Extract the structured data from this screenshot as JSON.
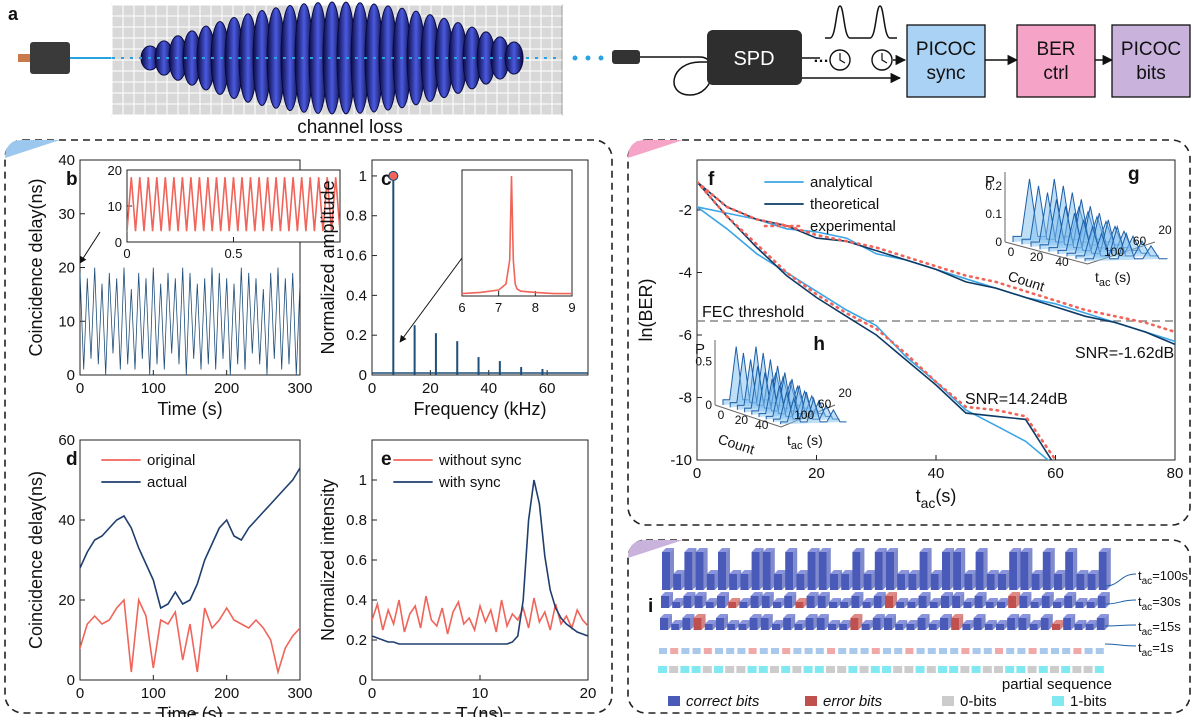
{
  "diagram": {
    "label": "a",
    "channel_loss": "channel loss",
    "spd": "SPD",
    "boxes": [
      {
        "lines": [
          "PICOC",
          "sync"
        ],
        "color": "#a9d2f5"
      },
      {
        "lines": [
          "BER",
          "ctrl"
        ],
        "color": "#f5a3c7"
      },
      {
        "lines": [
          "PICOC",
          "bits"
        ],
        "color": "#c9b3dd"
      }
    ]
  },
  "chart_data": [
    {
      "type": "line",
      "panel": "b",
      "xlabel": "Time (s)",
      "ylabel": "Coincidence delay(ns)",
      "xlim": [
        0,
        300
      ],
      "ylim": [
        0,
        40
      ],
      "xticks": [
        0,
        100,
        200,
        300
      ],
      "yticks": [
        0,
        10,
        20,
        30,
        40
      ],
      "x": [
        0,
        5,
        10,
        15,
        20,
        25,
        30,
        35,
        40,
        45,
        50,
        55,
        60,
        65,
        70,
        75,
        80,
        85,
        90,
        95,
        100,
        105,
        110,
        115,
        120,
        125,
        130,
        135,
        140,
        145,
        150,
        155,
        160,
        165,
        170,
        175,
        180,
        185,
        190,
        195,
        200,
        205,
        210,
        215,
        220,
        225,
        230,
        235,
        240,
        245,
        250,
        255,
        260,
        265,
        270,
        275,
        280,
        285,
        290,
        295,
        300
      ],
      "series": [
        {
          "color": "#1f4e79",
          "values": [
            19,
            1,
            18,
            3,
            20,
            2,
            17,
            0,
            19,
            4,
            18,
            1,
            20,
            2,
            16,
            1,
            19,
            3,
            18,
            0,
            20,
            2,
            17,
            1,
            19,
            4,
            18,
            2,
            20,
            0,
            19,
            3,
            17,
            1,
            18,
            2,
            20,
            1,
            19,
            3,
            18,
            0,
            17,
            2,
            20,
            1,
            19,
            4,
            18,
            2,
            16,
            0,
            19,
            3,
            20,
            1,
            18,
            2,
            19,
            0,
            17
          ]
        }
      ]
    },
    {
      "type": "line",
      "xlim": [
        0,
        1
      ],
      "ylim": [
        0,
        20
      ],
      "xticks": [
        0,
        0.5,
        1
      ],
      "yticks": [
        0,
        10,
        20
      ],
      "x": [
        0,
        0.02,
        0.04,
        0.06,
        0.08,
        0.1,
        0.12,
        0.14,
        0.16,
        0.18,
        0.2,
        0.22,
        0.24,
        0.26,
        0.28,
        0.3,
        0.32,
        0.34,
        0.36,
        0.38,
        0.4,
        0.42,
        0.44,
        0.46,
        0.48,
        0.5,
        0.52,
        0.54,
        0.56,
        0.58,
        0.6,
        0.62,
        0.64,
        0.66,
        0.68,
        0.7,
        0.72,
        0.74,
        0.76,
        0.78,
        0.8,
        0.82,
        0.84,
        0.86,
        0.88,
        0.9,
        0.92,
        0.94,
        0.96,
        0.98,
        1
      ],
      "series": [
        {
          "color": "#f0645a",
          "values": [
            3,
            18,
            3,
            18,
            3,
            18,
            3,
            18,
            3,
            18,
            3,
            18,
            3,
            18,
            3,
            18,
            3,
            18,
            3,
            18,
            3,
            18,
            3,
            18,
            3,
            18,
            3,
            18,
            3,
            18,
            3,
            18,
            3,
            18,
            3,
            18,
            3,
            18,
            3,
            18,
            3,
            18,
            3,
            18,
            3,
            18,
            3,
            18,
            3,
            18,
            3
          ]
        }
      ]
    },
    {
      "type": "stem",
      "panel": "c",
      "xlabel": "Frequency (kHz)",
      "ylabel": "Normalized amplitude",
      "xlim": [
        0,
        74
      ],
      "ylim": [
        0,
        1.08
      ],
      "xticks": [
        0,
        20,
        40,
        60
      ],
      "yticks": [
        0,
        0.2,
        0.4,
        0.6,
        0.8,
        1
      ],
      "peak_marker": "#f0645a",
      "x": [
        7.3,
        14.6,
        21.9,
        29.2,
        36.5,
        43.8,
        51.1,
        58.4
      ],
      "series": [
        {
          "color": "#1f4e79",
          "values": [
            1,
            0.25,
            0.21,
            0.17,
            0.09,
            0.07,
            0.04,
            0.03
          ]
        }
      ]
    },
    {
      "type": "line",
      "xlim": [
        6,
        9
      ],
      "ylim": [
        0,
        1.05
      ],
      "xticks": [
        6,
        7,
        8,
        9
      ],
      "x": [
        6,
        6.5,
        7,
        7.2,
        7.3,
        7.35,
        7.4,
        7.45,
        7.5,
        7.6,
        8,
        8.5,
        9
      ],
      "series": [
        {
          "color": "#f0645a",
          "values": [
            0.02,
            0.03,
            0.05,
            0.1,
            0.3,
            1,
            0.3,
            0.1,
            0.06,
            0.04,
            0.03,
            0.02,
            0.02
          ]
        }
      ]
    },
    {
      "type": "line",
      "panel": "d",
      "xlabel": "Time (s)",
      "ylabel": "Coincidence delay(ns)",
      "xlim": [
        0,
        300
      ],
      "ylim": [
        0,
        60
      ],
      "xticks": [
        0,
        100,
        200,
        300
      ],
      "yticks": [
        0,
        20,
        40,
        60
      ],
      "x": [
        0,
        10,
        20,
        30,
        40,
        50,
        60,
        70,
        80,
        90,
        100,
        110,
        120,
        130,
        140,
        150,
        160,
        170,
        180,
        190,
        200,
        210,
        220,
        230,
        240,
        250,
        260,
        270,
        280,
        290,
        300
      ],
      "series": [
        {
          "name": "original",
          "color": "#f0645a",
          "values": [
            8,
            14,
            16,
            14,
            15,
            18,
            20,
            2,
            20,
            16,
            3,
            15,
            14,
            17,
            5,
            14,
            2,
            18,
            13,
            15,
            18,
            15,
            14,
            13,
            15,
            13,
            10,
            2,
            8,
            11,
            13
          ]
        },
        {
          "name": "actual",
          "color": "#1f3f6e",
          "values": [
            28,
            32,
            35,
            36,
            38,
            40,
            41,
            38,
            33,
            29,
            25,
            18,
            19,
            22,
            19,
            20,
            24,
            30,
            34,
            38,
            40,
            36,
            35,
            38,
            40,
            42,
            44,
            46,
            48,
            50,
            53
          ]
        }
      ]
    },
    {
      "type": "line",
      "panel": "e",
      "xlabel": "T (ns)",
      "ylabel": "Normalized intensity",
      "xlim": [
        0,
        20
      ],
      "ylim": [
        0,
        1.2
      ],
      "xticks": [
        0,
        10,
        20
      ],
      "yticks": [
        0,
        0.2,
        0.4,
        0.6,
        0.8,
        1
      ],
      "x": [
        0,
        0.5,
        1,
        1.5,
        2,
        2.5,
        3,
        3.5,
        4,
        4.5,
        5,
        5.5,
        6,
        6.5,
        7,
        7.5,
        8,
        8.5,
        9,
        9.5,
        10,
        10.5,
        11,
        11.5,
        12,
        12.5,
        13,
        13.5,
        14,
        14.5,
        15,
        15.5,
        16,
        16.5,
        17,
        17.5,
        18,
        18.5,
        19,
        19.5,
        20
      ],
      "series": [
        {
          "name": "without sync",
          "color": "#f0645a",
          "values": [
            0.3,
            0.38,
            0.25,
            0.35,
            0.28,
            0.4,
            0.24,
            0.33,
            0.37,
            0.26,
            0.42,
            0.3,
            0.27,
            0.36,
            0.23,
            0.34,
            0.39,
            0.28,
            0.31,
            0.25,
            0.37,
            0.29,
            0.35,
            0.24,
            0.4,
            0.27,
            0.33,
            0.3,
            0.36,
            0.26,
            0.41,
            0.29,
            0.34,
            0.25,
            0.38,
            0.28,
            0.32,
            0.26,
            0.35,
            0.3,
            0.27
          ]
        },
        {
          "name": "with sync",
          "color": "#1f3f6e",
          "values": [
            0.22,
            0.21,
            0.2,
            0.19,
            0.19,
            0.18,
            0.18,
            0.18,
            0.18,
            0.18,
            0.18,
            0.18,
            0.18,
            0.18,
            0.18,
            0.18,
            0.18,
            0.18,
            0.18,
            0.18,
            0.18,
            0.18,
            0.18,
            0.18,
            0.18,
            0.18,
            0.19,
            0.22,
            0.4,
            0.8,
            1,
            0.88,
            0.62,
            0.45,
            0.36,
            0.31,
            0.28,
            0.26,
            0.24,
            0.23,
            0.22
          ]
        }
      ]
    },
    {
      "type": "line",
      "panel": "f",
      "xlabel": {
        "main": "t",
        "sub": "ac",
        "unit": "(s)"
      },
      "ylabel": "ln(BER)",
      "xlim": [
        0,
        80
      ],
      "ylim": [
        -10,
        -0.4
      ],
      "xticks": [
        0,
        20,
        40,
        60,
        80
      ],
      "yticks": [
        -10,
        -8,
        -6,
        -4,
        -2
      ],
      "x": [
        0,
        5,
        10,
        15,
        20,
        25,
        30,
        35,
        40,
        45,
        50,
        55,
        60,
        65,
        70,
        75,
        80
      ],
      "fec_threshold": {
        "label": "FEC threshold",
        "value": -5.55
      },
      "snr_labels": [
        "SNR=-1.62dB",
        "SNR=14.24dB"
      ],
      "series": [
        {
          "name": "analytical",
          "color": "#3ca5e6",
          "dash": false,
          "values": [
            -1.9,
            -2.1,
            -2.3,
            -2.6,
            -2.7,
            -2.9,
            -3.4,
            -3.6,
            -3.9,
            -4.2,
            -4.5,
            -4.8,
            -5.0,
            -5.3,
            -5.6,
            -5.9,
            -6.2
          ]
        },
        {
          "name": "theoretical",
          "color": "#0d3b66",
          "dash": false,
          "values": [
            -1.1,
            -1.9,
            -2.3,
            -2.5,
            -2.9,
            -3.0,
            -3.3,
            -3.6,
            -3.9,
            -4.3,
            -4.5,
            -4.8,
            -5.1,
            -5.4,
            -5.6,
            -5.9,
            -6.3
          ]
        },
        {
          "name": "experimental",
          "color": "#f0645a",
          "dash": true,
          "values": [
            -1.1,
            -1.9,
            -2.3,
            -2.5,
            -2.8,
            -3.0,
            -3.2,
            -3.5,
            -3.8,
            -4.1,
            -4.3,
            -4.6,
            -4.9,
            -5.2,
            -5.4,
            -5.6,
            -5.9
          ]
        }
      ],
      "series_2": [
        {
          "color": "#3ca5e6",
          "dash": false,
          "values": [
            -1.9,
            -2.6,
            -3.4,
            -4.0,
            -4.6,
            -5.2,
            -5.7,
            -6.7,
            -7.5,
            -8.4,
            -8.9,
            -9.4,
            -10.2,
            null,
            null,
            null,
            null
          ]
        },
        {
          "color": "#0d3b66",
          "dash": false,
          "values": [
            -1.1,
            -2.2,
            -3.2,
            -4.1,
            -4.8,
            -5.4,
            -6.0,
            -6.8,
            -7.6,
            -8.5,
            -8.6,
            -8.7,
            -10.2,
            null,
            null,
            null,
            null
          ]
        },
        {
          "color": "#f0645a",
          "dash": true,
          "values": [
            -1.1,
            -2.2,
            -3.1,
            -4.0,
            -4.7,
            -5.3,
            -5.8,
            -6.6,
            -7.5,
            -8.3,
            -8.4,
            -8.6,
            -10.0,
            null,
            null,
            null,
            null
          ]
        }
      ]
    }
  ],
  "insets_3d": [
    {
      "label": "g",
      "zlabel": "P",
      "zticks": [
        0,
        0.1,
        0.2
      ],
      "xlabel": "Count",
      "xticks": [
        0,
        20,
        40
      ],
      "ylabel": {
        "main": "t",
        "sub": "ac",
        "unit": "(s)"
      },
      "yticks": [
        20,
        60,
        100
      ]
    },
    {
      "label": "h",
      "zlabel": "P",
      "zticks": [
        0,
        0.5
      ],
      "xlabel": "Count",
      "xticks": [
        0,
        20,
        40
      ],
      "ylabel": {
        "main": "t",
        "sub": "ac",
        "unit": "(s)"
      },
      "yticks": [
        20,
        60,
        100
      ]
    }
  ],
  "panel_i": {
    "label": "i",
    "t_symbol": "t",
    "t_sub": "ac",
    "bits": [
      1,
      0,
      1,
      1,
      0,
      1,
      0,
      0,
      1,
      1,
      0,
      1,
      0,
      1,
      1,
      0,
      0,
      1,
      0,
      1,
      1,
      0,
      0,
      1,
      0,
      1,
      1,
      0,
      1,
      0,
      0,
      1,
      1,
      0,
      1,
      0,
      1,
      0,
      0,
      1
    ],
    "rows": [
      {
        "label": "=100s",
        "errors": []
      },
      {
        "label": "=30s",
        "errors": [
          6,
          12,
          20,
          31
        ]
      },
      {
        "label": "=15s",
        "errors": [
          3,
          17,
          26,
          35
        ]
      },
      {
        "label": "=1s",
        "errors": [
          1,
          4,
          8,
          11,
          15,
          19,
          22,
          27,
          30,
          33,
          37
        ]
      }
    ],
    "legend": {
      "correct": "correct bits",
      "error": "error bits",
      "zero": "0-bits",
      "one": "1-bits"
    },
    "partial_sequence": "partial sequence"
  }
}
